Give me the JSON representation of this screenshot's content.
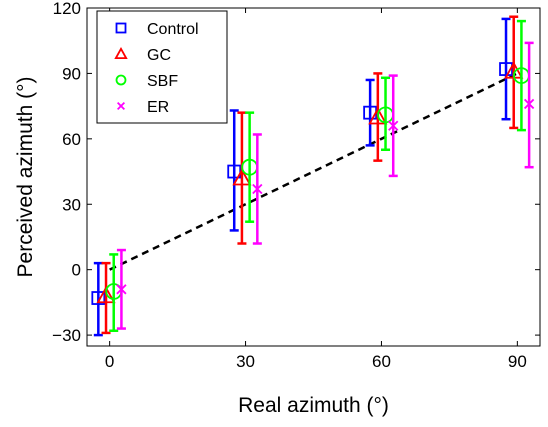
{
  "chart_data": {
    "type": "scatter",
    "xlabel": "Real azimuth (°)",
    "ylabel": "Perceived azimuth (°)",
    "xlim": [
      -5,
      95
    ],
    "ylim": [
      -35,
      120
    ],
    "xticks": [
      0,
      30,
      60,
      90
    ],
    "xtick_labels": [
      "0",
      "30",
      "60",
      "90"
    ],
    "yticks": [
      -30,
      0,
      30,
      60,
      90,
      120
    ],
    "ytick_labels": [
      "−30",
      "0",
      "30",
      "60",
      "90",
      "120"
    ],
    "grid": false,
    "legend_position": "top-left",
    "reference_line": {
      "style": "dashed",
      "color": "#000000",
      "points": [
        [
          0,
          0
        ],
        [
          90,
          90
        ]
      ]
    },
    "series": [
      {
        "name": "Control",
        "marker": "square",
        "color": "#0000ff",
        "x": [
          -2.5,
          27.5,
          57.5,
          87.5
        ],
        "y": [
          -13,
          45,
          72,
          92
        ],
        "err_low": [
          -30,
          18,
          57,
          69
        ],
        "err_high": [
          3,
          73,
          87,
          115
        ]
      },
      {
        "name": "GC",
        "marker": "triangle",
        "color": "#ff0000",
        "x": [
          -0.8,
          29.2,
          59.2,
          89.2
        ],
        "y": [
          -12,
          42,
          70,
          91
        ],
        "err_low": [
          -29,
          12,
          50,
          65
        ],
        "err_high": [
          3,
          72,
          90,
          116
        ]
      },
      {
        "name": "SBF",
        "marker": "circle",
        "color": "#00ff00",
        "x": [
          0.9,
          30.9,
          60.9,
          90.9
        ],
        "y": [
          -10,
          47,
          71,
          89
        ],
        "err_low": [
          -28,
          22,
          55,
          64
        ],
        "err_high": [
          7,
          72,
          88,
          114
        ]
      },
      {
        "name": "ER",
        "marker": "x",
        "color": "#ff00ff",
        "x": [
          2.6,
          32.6,
          62.6,
          92.6
        ],
        "y": [
          -9,
          37,
          66,
          76
        ],
        "err_low": [
          -27,
          12,
          43,
          47
        ],
        "err_high": [
          9,
          62,
          89,
          104
        ]
      }
    ]
  }
}
